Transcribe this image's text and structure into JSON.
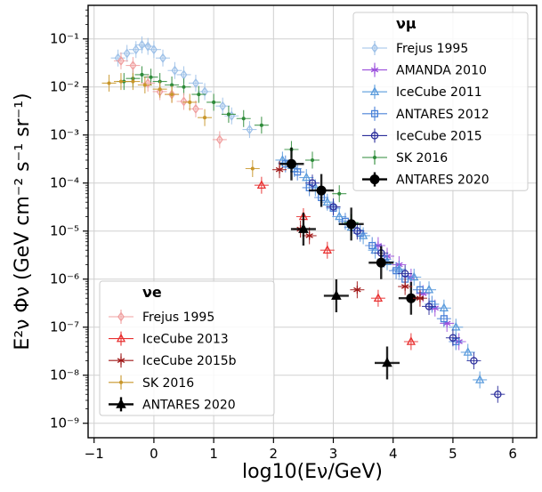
{
  "chart_data": {
    "type": "scatter",
    "title": "",
    "xlabel": "log10(Eν/GeV)",
    "ylabel": "E²ν Φν (GeV cm⁻² s⁻¹ sr⁻¹)",
    "x_scale": "linear",
    "y_scale": "log",
    "xlim": [
      -1.1,
      6.4
    ],
    "ylim": [
      5e-10,
      0.5
    ],
    "grid": true,
    "x_ticks": [
      -1,
      0,
      1,
      2,
      3,
      4,
      5,
      6
    ],
    "y_ticks": [
      1e-09,
      1e-08,
      1e-07,
      1e-06,
      1e-05,
      0.0001,
      0.001,
      0.01,
      0.1
    ],
    "x_tick_labels": [
      "−1",
      "0",
      "1",
      "2",
      "3",
      "4",
      "5",
      "6"
    ],
    "y_tick_labels": [
      "10⁻⁹",
      "10⁻⁸",
      "10⁻⁷",
      "10⁻⁶",
      "10⁻⁵",
      "10⁻⁴",
      "10⁻³",
      "10⁻²",
      "10⁻¹"
    ],
    "legends": [
      {
        "title": "νμ",
        "placement": "top-right",
        "entries": [
          "Frejus 1995",
          "AMANDA 2010",
          "IceCube 2011",
          "ANTARES 2012",
          "IceCube 2015",
          "SK 2016",
          "ANTARES 2020"
        ]
      },
      {
        "title": "νe",
        "placement": "bottom-left",
        "entries": [
          "Frejus 1995",
          "IceCube 2013",
          "IceCube 2015b",
          "SK 2016",
          "ANTARES 2020"
        ]
      }
    ],
    "series": [
      {
        "name": "Frejus 1995",
        "flavor": "numu",
        "marker": "diamond-open",
        "color": "#9ec1e8",
        "points": [
          [
            -0.6,
            0.04
          ],
          [
            -0.45,
            0.05
          ],
          [
            -0.3,
            0.06
          ],
          [
            -0.2,
            0.075
          ],
          [
            -0.1,
            0.07
          ],
          [
            0.0,
            0.06
          ],
          [
            0.15,
            0.04
          ],
          [
            0.35,
            0.022
          ],
          [
            0.5,
            0.018
          ],
          [
            0.7,
            0.012
          ],
          [
            0.85,
            0.008
          ],
          [
            1.15,
            0.004
          ],
          [
            1.3,
            0.0025
          ],
          [
            1.6,
            0.0013
          ]
        ]
      },
      {
        "name": "AMANDA 2010",
        "flavor": "numu",
        "marker": "asterisk",
        "color": "#9b4fdc",
        "points": [
          [
            3.75,
            5e-06
          ],
          [
            3.9,
            3e-06
          ],
          [
            4.1,
            2e-06
          ],
          [
            4.3,
            1.1e-06
          ],
          [
            4.5,
            5e-07
          ],
          [
            4.7,
            2.5e-07
          ],
          [
            4.9,
            1.2e-07
          ],
          [
            5.1,
            5e-08
          ]
        ]
      },
      {
        "name": "IceCube 2011",
        "flavor": "numu",
        "marker": "triangle-open",
        "color": "#5a9bdc",
        "points": [
          [
            2.15,
            0.0003
          ],
          [
            2.35,
            0.0002
          ],
          [
            2.55,
            0.00013
          ],
          [
            2.7,
            8e-05
          ],
          [
            2.9,
            4e-05
          ],
          [
            3.1,
            2e-05
          ],
          [
            3.3,
            1.2e-05
          ],
          [
            3.5,
            8e-06
          ],
          [
            3.7,
            4e-06
          ],
          [
            3.9,
            2.3e-06
          ],
          [
            4.1,
            1.6e-06
          ],
          [
            4.35,
            1.1e-06
          ],
          [
            4.6,
            6e-07
          ],
          [
            4.85,
            2.5e-07
          ],
          [
            5.05,
            1e-07
          ],
          [
            5.25,
            3e-08
          ],
          [
            5.45,
            8e-09
          ]
        ]
      },
      {
        "name": "ANTARES 2012",
        "flavor": "numu",
        "marker": "square-open",
        "color": "#4a82d8",
        "points": [
          [
            2.2,
            0.00025
          ],
          [
            2.4,
            0.00017
          ],
          [
            2.6,
            8e-05
          ],
          [
            2.8,
            5e-05
          ],
          [
            3.0,
            3e-05
          ],
          [
            3.2,
            1.6e-05
          ],
          [
            3.45,
            9e-06
          ],
          [
            3.65,
            5e-06
          ],
          [
            3.85,
            2.6e-06
          ],
          [
            4.05,
            1.5e-06
          ],
          [
            4.2,
            1e-06
          ],
          [
            4.45,
            6e-07
          ],
          [
            4.65,
            3e-07
          ],
          [
            4.85,
            1.5e-07
          ],
          [
            5.05,
            5e-08
          ]
        ]
      },
      {
        "name": "IceCube 2015",
        "flavor": "numu",
        "marker": "circle-open",
        "color": "#2c2f9c",
        "points": [
          [
            2.65,
            0.0001
          ],
          [
            3.0,
            3.2e-05
          ],
          [
            3.4,
            1e-05
          ],
          [
            3.8,
            3.5e-06
          ],
          [
            4.2,
            1.3e-06
          ],
          [
            4.6,
            2.7e-07
          ],
          [
            5.0,
            6e-08
          ],
          [
            5.35,
            2e-08
          ],
          [
            5.75,
            4e-09
          ]
        ]
      },
      {
        "name": "SK 2016",
        "flavor": "numu",
        "marker": "dot",
        "color": "#2e8b3a",
        "points": [
          [
            -0.5,
            0.013
          ],
          [
            -0.35,
            0.015
          ],
          [
            -0.2,
            0.018
          ],
          [
            -0.05,
            0.016
          ],
          [
            0.1,
            0.013
          ],
          [
            0.3,
            0.011
          ],
          [
            0.5,
            0.01
          ],
          [
            0.75,
            0.007
          ],
          [
            1.0,
            0.0048
          ],
          [
            1.25,
            0.0027
          ],
          [
            1.5,
            0.0022
          ],
          [
            1.8,
            0.0016
          ],
          [
            2.3,
            0.0005
          ],
          [
            2.65,
            0.0003
          ],
          [
            3.1,
            6e-05
          ],
          [
            3.3,
            1.5e-05
          ]
        ]
      },
      {
        "name": "ANTARES 2020",
        "flavor": "numu",
        "marker": "circle-filled",
        "color": "#000000",
        "points": [
          [
            2.3,
            0.00025
          ],
          [
            2.8,
            7e-05
          ],
          [
            3.3,
            1.4e-05
          ],
          [
            3.8,
            2.2e-06
          ],
          [
            4.3,
            4e-07
          ]
        ]
      },
      {
        "name": "Frejus 1995",
        "flavor": "nue",
        "marker": "diamond-open",
        "color": "#f0a0a0",
        "points": [
          [
            -0.55,
            0.035
          ],
          [
            -0.35,
            0.028
          ],
          [
            -0.1,
            0.012
          ],
          [
            0.1,
            0.008
          ],
          [
            0.3,
            0.007
          ],
          [
            0.5,
            0.005
          ],
          [
            0.7,
            0.0035
          ],
          [
            1.1,
            0.0008
          ]
        ]
      },
      {
        "name": "IceCube 2013",
        "flavor": "nue",
        "marker": "triangle-open",
        "color": "#e83030",
        "points": [
          [
            1.8,
            9e-05
          ],
          [
            2.5,
            2e-05
          ],
          [
            2.9,
            4e-06
          ],
          [
            3.75,
            4e-07
          ],
          [
            4.3,
            5e-08
          ]
        ]
      },
      {
        "name": "IceCube 2015b",
        "flavor": "nue",
        "marker": "asterisk",
        "color": "#a01818",
        "points": [
          [
            2.1,
            0.00019
          ],
          [
            2.45,
            1.1e-05
          ],
          [
            2.6,
            8e-06
          ],
          [
            3.4,
            6e-07
          ],
          [
            4.2,
            7e-07
          ],
          [
            4.45,
            4e-07
          ]
        ]
      },
      {
        "name": "SK 2016",
        "flavor": "nue",
        "marker": "dot",
        "color": "#c8962a",
        "points": [
          [
            -0.75,
            0.012
          ],
          [
            -0.55,
            0.013
          ],
          [
            -0.35,
            0.013
          ],
          [
            -0.15,
            0.011
          ],
          [
            0.1,
            0.009
          ],
          [
            0.3,
            0.007
          ],
          [
            0.6,
            0.0048
          ],
          [
            0.85,
            0.0023
          ],
          [
            1.65,
            0.0002
          ]
        ]
      },
      {
        "name": "ANTARES 2020",
        "flavor": "nue",
        "marker": "triangle-filled",
        "color": "#000000",
        "points": [
          [
            2.5,
            1.1e-05
          ],
          [
            3.05,
            4.5e-07
          ],
          [
            3.9,
            1.8e-08
          ]
        ]
      }
    ]
  }
}
